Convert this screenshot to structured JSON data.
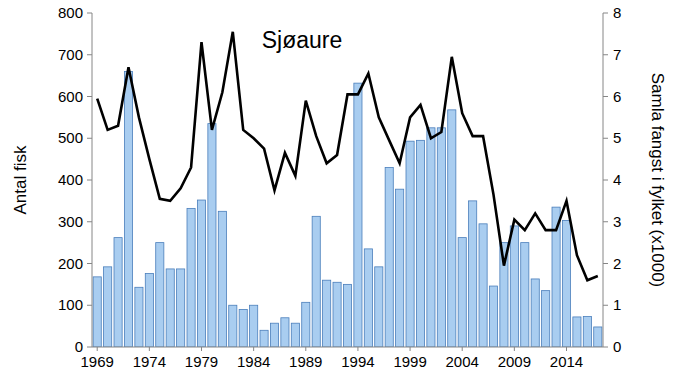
{
  "chart_data": {
    "type": "bar",
    "title": "Sjøaure",
    "y_label": "Antal fisk",
    "y2_label": "Samla fangst i fylket (x1000)",
    "categories": [
      "1969",
      null,
      null,
      null,
      null,
      "1974",
      null,
      null,
      null,
      null,
      "1979",
      null,
      null,
      null,
      null,
      "1984",
      null,
      null,
      null,
      null,
      "1989",
      null,
      null,
      null,
      null,
      "1994",
      null,
      null,
      null,
      null,
      "1999",
      null,
      null,
      null,
      null,
      "2004",
      null,
      null,
      null,
      null,
      "2009",
      null,
      null,
      null,
      null,
      "2014",
      null,
      null,
      null
    ],
    "series": [
      {
        "type": "bar",
        "color": "#a9cdf0",
        "values": [
          168,
          192,
          262,
          660,
          143,
          176,
          250,
          187,
          187,
          332,
          352,
          535,
          325,
          100,
          90,
          100,
          40,
          57,
          70,
          57,
          107,
          313,
          160,
          155,
          150,
          632,
          235,
          192,
          430,
          378,
          493,
          495,
          525,
          525,
          568,
          262,
          350,
          295,
          146,
          250,
          290,
          250,
          163,
          135,
          335,
          303,
          72,
          73,
          48
        ]
      },
      {
        "type": "line",
        "axis": "y2",
        "color": "#000000",
        "values": [
          5.95,
          5.2,
          5.3,
          6.7,
          5.5,
          4.5,
          3.55,
          3.5,
          3.8,
          4.3,
          7.3,
          5.2,
          6.1,
          7.55,
          5.2,
          5.0,
          4.75,
          3.75,
          4.65,
          4.1,
          5.9,
          5.05,
          4.4,
          4.6,
          6.05,
          6.05,
          6.55,
          5.5,
          4.95,
          4.4,
          5.5,
          5.8,
          5.0,
          5.15,
          6.95,
          5.6,
          5.05,
          5.05,
          3.65,
          1.95,
          3.05,
          2.8,
          3.2,
          2.8,
          2.8,
          3.5,
          2.2,
          1.6,
          1.7
        ]
      }
    ],
    "ylim": [
      0,
      800
    ],
    "yticks": [
      0,
      100,
      200,
      300,
      400,
      500,
      600,
      700,
      800
    ],
    "y2lim": [
      0,
      8
    ],
    "y2ticks": [
      0,
      1,
      2,
      3,
      4,
      5,
      6,
      7,
      8
    ],
    "grid": false
  }
}
